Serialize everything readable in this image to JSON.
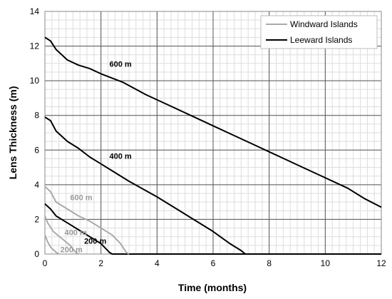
{
  "chart_data": {
    "type": "line",
    "title": "",
    "xlabel": "Time (months)",
    "ylabel": "Lens Thickness (m)",
    "xlim": [
      0,
      12
    ],
    "ylim": [
      0,
      14
    ],
    "x_ticks": [
      0,
      2,
      4,
      6,
      8,
      10,
      12
    ],
    "y_ticks": [
      0,
      2,
      4,
      6,
      8,
      10,
      12,
      14
    ],
    "grid": true,
    "legend_position": "top-right",
    "legend": [
      {
        "label": "Windward Islands",
        "color": "#aaaaaa"
      },
      {
        "label": "Leeward Islands",
        "color": "#000000"
      }
    ],
    "series": [
      {
        "group": "Leeward Islands",
        "color": "#000000",
        "label": "600 m",
        "x": [
          0,
          0.2,
          0.4,
          0.8,
          1.2,
          1.6,
          2.0,
          2.8,
          3.6,
          4.4,
          5.2,
          6.0,
          6.8,
          7.6,
          8.4,
          9.2,
          10.0,
          10.8,
          11.4,
          12.0
        ],
        "y": [
          12.5,
          12.3,
          11.8,
          11.2,
          10.9,
          10.7,
          10.4,
          9.9,
          9.2,
          8.6,
          8.0,
          7.4,
          6.8,
          6.2,
          5.6,
          5.0,
          4.4,
          3.8,
          3.2,
          2.7
        ]
      },
      {
        "group": "Leeward Islands",
        "color": "#000000",
        "label": "400 m",
        "x": [
          0,
          0.2,
          0.4,
          0.8,
          1.2,
          1.6,
          2.0,
          2.4,
          3.0,
          4.0,
          5.0,
          6.0,
          6.6,
          7.0,
          7.15,
          7.3,
          12.0
        ],
        "y": [
          7.9,
          7.7,
          7.1,
          6.5,
          6.1,
          5.6,
          5.2,
          4.8,
          4.2,
          3.3,
          2.3,
          1.3,
          0.6,
          0.2,
          0.0,
          0.0,
          0.0
        ]
      },
      {
        "group": "Leeward Islands",
        "color": "#000000",
        "label": "200 m",
        "x": [
          0,
          0.2,
          0.4,
          0.8,
          1.2,
          1.6,
          2.0,
          2.3,
          2.4,
          12.0
        ],
        "y": [
          2.9,
          2.6,
          2.2,
          1.8,
          1.4,
          1.0,
          0.6,
          0.1,
          0.0,
          0.0
        ]
      },
      {
        "group": "Windward Islands",
        "color": "#aaaaaa",
        "label": "600 m",
        "x": [
          0,
          0.2,
          0.4,
          0.8,
          1.2,
          1.6,
          2.0,
          2.4,
          2.7,
          2.9,
          3.0
        ],
        "y": [
          3.9,
          3.6,
          3.0,
          2.6,
          2.2,
          1.9,
          1.5,
          1.1,
          0.6,
          0.1,
          0.0
        ]
      },
      {
        "group": "Windward Islands",
        "color": "#aaaaaa",
        "label": "400 m",
        "x": [
          0,
          0.1,
          0.3,
          0.6,
          0.9,
          1.1,
          1.2
        ],
        "y": [
          2.2,
          1.8,
          1.3,
          0.9,
          0.5,
          0.1,
          0.0
        ]
      },
      {
        "group": "Windward Islands",
        "color": "#aaaaaa",
        "label": "200 m",
        "x": [
          0,
          0.1,
          0.2,
          0.4,
          0.5
        ],
        "y": [
          1.1,
          0.7,
          0.4,
          0.1,
          0.0
        ]
      }
    ],
    "annotations": [
      {
        "text": "600 m",
        "x": 2.3,
        "y": 10.8,
        "color": "#000000"
      },
      {
        "text": "400 m",
        "x": 2.3,
        "y": 5.5,
        "color": "#000000"
      },
      {
        "text": "200 m",
        "x": 1.4,
        "y": 0.6,
        "color": "#000000"
      },
      {
        "text": "600 m",
        "x": 0.9,
        "y": 3.1,
        "color": "#999999"
      },
      {
        "text": "400 m",
        "x": 0.7,
        "y": 1.1,
        "color": "#999999"
      },
      {
        "text": "200 m",
        "x": 0.55,
        "y": 0.1,
        "color": "#999999"
      }
    ]
  }
}
